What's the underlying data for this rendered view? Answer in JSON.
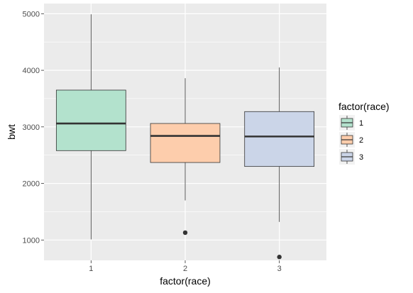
{
  "chart_data": {
    "type": "boxplot",
    "xlabel": "factor(race)",
    "ylabel": "bwt",
    "categories": [
      "1",
      "2",
      "3"
    ],
    "ylim": [
      640,
      5180
    ],
    "yticks": [
      1000,
      2000,
      3000,
      4000,
      5000
    ],
    "grid": true,
    "legend": {
      "title": "factor(race)",
      "position": "right",
      "entries": [
        "1",
        "2",
        "3"
      ]
    },
    "boxes": [
      {
        "category": "1",
        "min": 1010,
        "q1": 2580,
        "median": 3060,
        "q3": 3650,
        "max": 4990,
        "outliers": [],
        "color": "#b3e2cd"
      },
      {
        "category": "2",
        "min": 1700,
        "q1": 2370,
        "median": 2840,
        "q3": 3060,
        "max": 3860,
        "outliers": [
          1130
        ],
        "color": "#fdcdac"
      },
      {
        "category": "3",
        "min": 1320,
        "q1": 2300,
        "median": 2830,
        "q3": 3270,
        "max": 4050,
        "outliers": [
          700
        ],
        "color": "#cbd5e8"
      }
    ]
  }
}
